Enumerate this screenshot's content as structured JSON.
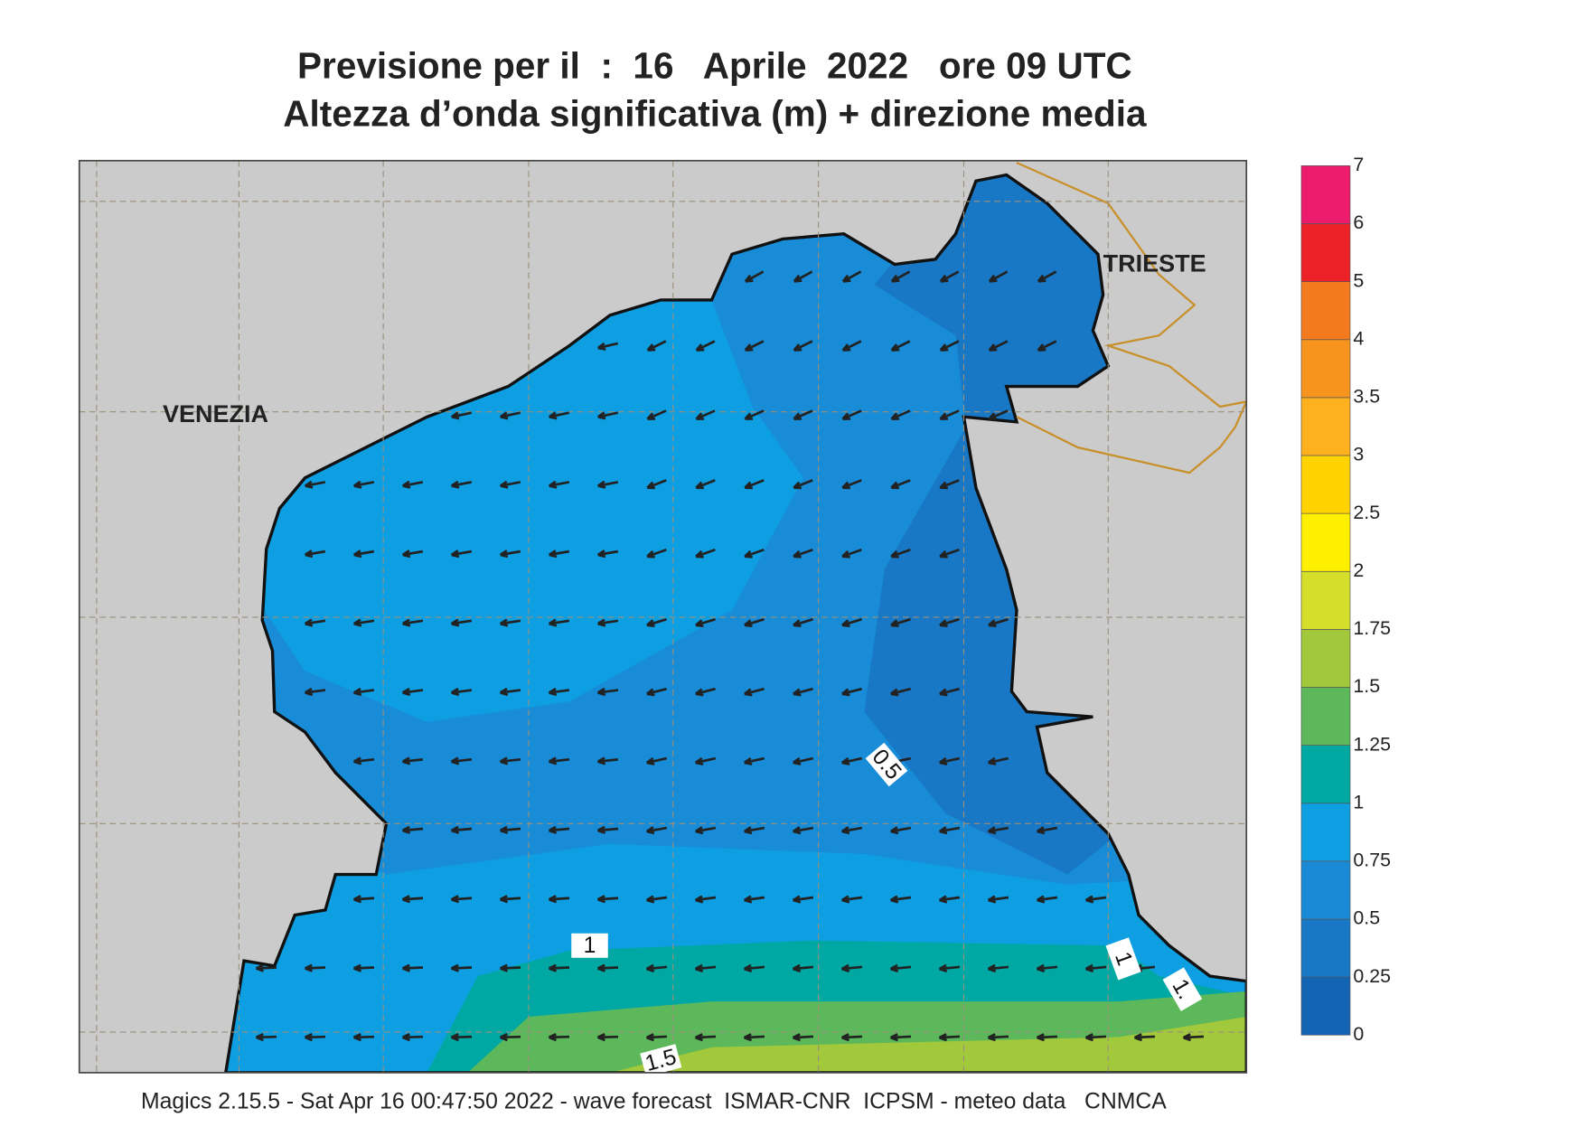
{
  "header": {
    "title": "Previsione per il  :  16   Aprile  2022   ore 09 UTC",
    "subtitle": "Altezza d’onda significativa (m) + direzione media"
  },
  "map": {
    "places": [
      "VENEZIA",
      "TRIESTE"
    ],
    "contour_labels": [
      "0.5",
      "1",
      "1",
      "1.",
      "1.5"
    ]
  },
  "colorbar": {
    "levels": [
      0,
      0.25,
      0.5,
      0.75,
      1,
      1.25,
      1.5,
      1.75,
      2,
      2.5,
      3,
      3.5,
      4,
      5,
      6,
      7
    ],
    "colors": [
      "#1464b4",
      "#1878c6",
      "#1a8ad6",
      "#0e9fe2",
      "#00a8a4",
      "#5cb85a",
      "#a2c83c",
      "#d5de2a",
      "#fff000",
      "#ffd200",
      "#ffb01e",
      "#f7941d",
      "#f47a20",
      "#ec2228",
      "#ec1b6c"
    ]
  },
  "footer": "Magics 2.15.5 - Sat Apr 16 00:47:50 2022 - wave forecast  ISMAR-CNR  ICPSM - meteo data   CNMCA"
}
